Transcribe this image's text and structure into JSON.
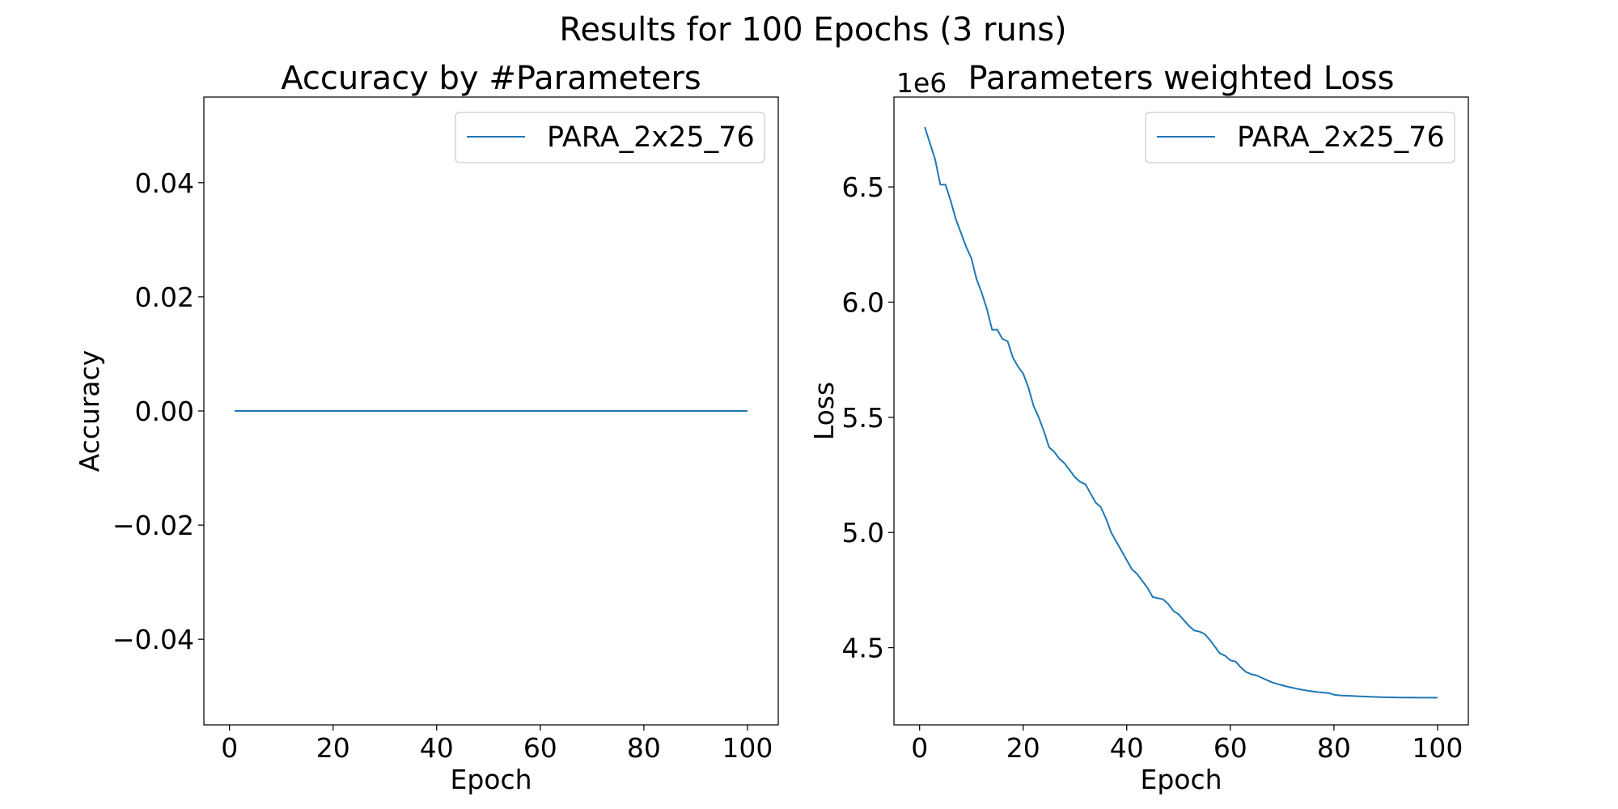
{
  "figure": {
    "suptitle": "Results for 100 Epochs (3 runs)"
  },
  "colors": {
    "series": "#1f77b4",
    "axes": "#000000",
    "background": "#ffffff"
  },
  "chart_data": [
    {
      "type": "line",
      "title": "Accuracy by #Parameters",
      "xlabel": "Epoch",
      "ylabel": "Accuracy",
      "xlim": [
        -4.95,
        105.95
      ],
      "ylim": [
        -0.055,
        0.055
      ],
      "xticks": [
        0,
        20,
        40,
        60,
        80,
        100
      ],
      "xtick_labels": [
        "0",
        "20",
        "40",
        "60",
        "80",
        "100"
      ],
      "yticks": [
        -0.04,
        -0.02,
        0.0,
        0.02,
        0.04
      ],
      "ytick_labels": [
        "−0.04",
        "−0.02",
        "0.00",
        "0.02",
        "0.04"
      ],
      "offset_text": "",
      "grid": false,
      "legend": {
        "position": "upper right"
      },
      "series": [
        {
          "name": "PARA_2x25_76",
          "x": [
            1,
            100
          ],
          "y": [
            0.0,
            0.0
          ]
        }
      ]
    },
    {
      "type": "line",
      "title": "Parameters weighted Loss",
      "xlabel": "Epoch",
      "ylabel": "Loss",
      "xlim": [
        -4.95,
        105.95
      ],
      "ylim": [
        4165000,
        6890000
      ],
      "xticks": [
        0,
        20,
        40,
        60,
        80,
        100
      ],
      "xtick_labels": [
        "0",
        "20",
        "40",
        "60",
        "80",
        "100"
      ],
      "yticks": [
        4500000,
        5000000,
        5500000,
        6000000,
        6500000
      ],
      "ytick_labels": [
        "4.5",
        "5.0",
        "5.5",
        "6.0",
        "6.5"
      ],
      "offset_text": "1e6",
      "grid": false,
      "legend": {
        "position": "upper right"
      },
      "series": [
        {
          "name": "PARA_2x25_76",
          "x": [
            1,
            2,
            3,
            4,
            5,
            6,
            7,
            8,
            9,
            10,
            11,
            12,
            13,
            14,
            15,
            16,
            17,
            18,
            19,
            20,
            21,
            22,
            23,
            24,
            25,
            26,
            27,
            28,
            29,
            30,
            31,
            32,
            33,
            34,
            35,
            36,
            37,
            38,
            39,
            40,
            41,
            42,
            43,
            44,
            45,
            46,
            47,
            48,
            49,
            50,
            51,
            52,
            53,
            54,
            55,
            56,
            57,
            58,
            59,
            60,
            61,
            62,
            63,
            64,
            65,
            66,
            67,
            68,
            69,
            70,
            71,
            72,
            73,
            74,
            75,
            76,
            77,
            78,
            79,
            80,
            81,
            82,
            83,
            84,
            85,
            86,
            87,
            88,
            89,
            90,
            91,
            92,
            93,
            94,
            95,
            96,
            97,
            98,
            99,
            100
          ],
          "y": [
            6760000,
            6690000,
            6620000,
            6510000,
            6510000,
            6440000,
            6360000,
            6300000,
            6240000,
            6190000,
            6100000,
            6040000,
            5970000,
            5880000,
            5880000,
            5840000,
            5830000,
            5760000,
            5720000,
            5690000,
            5630000,
            5550000,
            5500000,
            5440000,
            5370000,
            5350000,
            5320000,
            5300000,
            5270000,
            5240000,
            5220000,
            5210000,
            5170000,
            5130000,
            5110000,
            5060000,
            5000000,
            4960000,
            4920000,
            4880000,
            4840000,
            4820000,
            4790000,
            4760000,
            4720000,
            4715000,
            4710000,
            4690000,
            4660000,
            4645000,
            4620000,
            4595000,
            4575000,
            4570000,
            4560000,
            4535000,
            4505000,
            4475000,
            4465000,
            4445000,
            4440000,
            4415000,
            4395000,
            4385000,
            4380000,
            4370000,
            4360000,
            4350000,
            4343000,
            4337000,
            4331000,
            4326000,
            4321000,
            4317000,
            4313000,
            4310000,
            4307000,
            4305000,
            4303000,
            4296000,
            4293000,
            4292000,
            4291000,
            4290000,
            4289000,
            4288000,
            4287000,
            4286000,
            4285500,
            4285000,
            4284500,
            4284000,
            4283700,
            4283500,
            4283300,
            4283100,
            4283000,
            4283000,
            4283000,
            4283000
          ]
        }
      ]
    }
  ]
}
